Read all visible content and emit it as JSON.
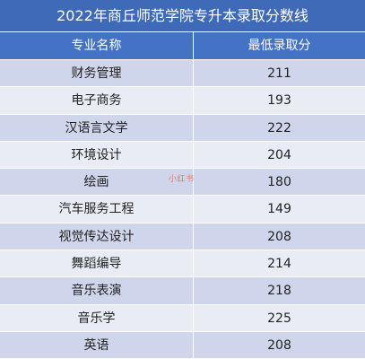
{
  "table": {
    "title": "2022年商丘师范学院专升本录取分数线",
    "headers": [
      "专业名称",
      "最低录取分"
    ],
    "rows": [
      {
        "major": "财务管理",
        "score": "211"
      },
      {
        "major": "电子商务",
        "score": "193"
      },
      {
        "major": "汉语言文学",
        "score": "222"
      },
      {
        "major": "环境设计",
        "score": "204"
      },
      {
        "major": "绘画",
        "score": "180"
      },
      {
        "major": "汽车服务工程",
        "score": "149"
      },
      {
        "major": "视觉传达设计",
        "score": "208"
      },
      {
        "major": "舞蹈编导",
        "score": "214"
      },
      {
        "major": "音乐表演",
        "score": "218"
      },
      {
        "major": "音乐学",
        "score": "225"
      },
      {
        "major": "英语",
        "score": "208"
      }
    ]
  },
  "watermark": {
    "text": "小红书"
  },
  "colors": {
    "title_bg": "#3f6ab7",
    "header_bg": "#4472c4",
    "row_odd_bg": "#cfd5ea",
    "row_even_bg": "#e9ebf5"
  }
}
